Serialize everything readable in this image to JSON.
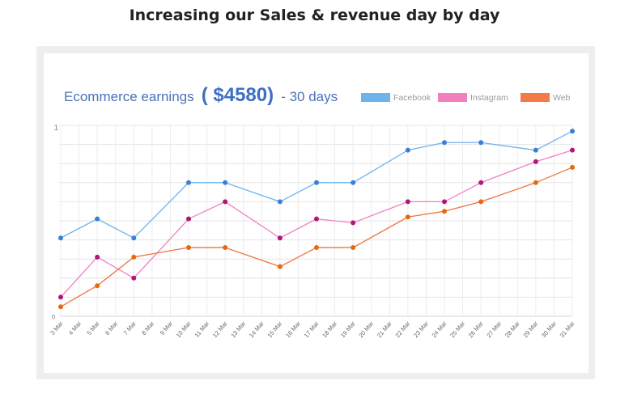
{
  "page": {
    "headline": "Increasing our Sales & revenue day by day"
  },
  "chart_data": {
    "type": "line",
    "title": {
      "prefix": "Ecommerce earnings",
      "amount": "( $4580)",
      "suffix": "- 30 days"
    },
    "ylim": [
      0,
      1
    ],
    "y_tick_labels": [
      "0",
      "1"
    ],
    "grid": true,
    "legend_position": "top-right",
    "categories": [
      "3 Mar",
      "4 Mar",
      "5 Mar",
      "6 Mar",
      "7 Mar",
      "8 Mar",
      "9 Mar",
      "10 Mar",
      "11 Mar",
      "12 Mar",
      "13 Mar",
      "14 Mar",
      "15 Mar",
      "16 Mar",
      "17 Mar",
      "18 Mar",
      "19 Mar",
      "20 Mar",
      "21 Mar",
      "22 Mar",
      "23 Mar",
      "24 Mar",
      "25 Mar",
      "26 Mar",
      "27 Mar",
      "28 Mar",
      "29 Mar",
      "30 Mar",
      "31 Mar"
    ],
    "series": [
      {
        "name": "Facebook",
        "color": "#6cb4ee",
        "marker_color": "#3a7fd5",
        "line_color": "#6cb4ee",
        "points": [
          [
            "3 Mar",
            0.41
          ],
          [
            "5 Mar",
            0.51
          ],
          [
            "7 Mar",
            0.41
          ],
          [
            "10 Mar",
            0.7
          ],
          [
            "12 Mar",
            0.7
          ],
          [
            "15 Mar",
            0.6
          ],
          [
            "17 Mar",
            0.7
          ],
          [
            "19 Mar",
            0.7
          ],
          [
            "22 Mar",
            0.87
          ],
          [
            "24 Mar",
            0.91
          ],
          [
            "26 Mar",
            0.91
          ],
          [
            "29 Mar",
            0.87
          ],
          [
            "31 Mar",
            0.97
          ]
        ]
      },
      {
        "name": "Instagram",
        "color": "#f47fbf",
        "marker_color": "#b0167a",
        "line_color": "#f17fc2",
        "points": [
          [
            "3 Mar",
            0.1
          ],
          [
            "5 Mar",
            0.31
          ],
          [
            "7 Mar",
            0.2
          ],
          [
            "10 Mar",
            0.51
          ],
          [
            "12 Mar",
            0.6
          ],
          [
            "15 Mar",
            0.41
          ],
          [
            "17 Mar",
            0.51
          ],
          [
            "19 Mar",
            0.49
          ],
          [
            "22 Mar",
            0.6
          ],
          [
            "24 Mar",
            0.6
          ],
          [
            "26 Mar",
            0.7
          ],
          [
            "29 Mar",
            0.81
          ],
          [
            "31 Mar",
            0.87
          ]
        ]
      },
      {
        "name": "Web",
        "color": "#f47a4a",
        "marker_color": "#e8680e",
        "line_color": "#ef7440",
        "points": [
          [
            "3 Mar",
            0.05
          ],
          [
            "5 Mar",
            0.16
          ],
          [
            "7 Mar",
            0.31
          ],
          [
            "10 Mar",
            0.36
          ],
          [
            "12 Mar",
            0.36
          ],
          [
            "15 Mar",
            0.26
          ],
          [
            "17 Mar",
            0.36
          ],
          [
            "19 Mar",
            0.36
          ],
          [
            "22 Mar",
            0.52
          ],
          [
            "24 Mar",
            0.55
          ],
          [
            "26 Mar",
            0.6
          ],
          [
            "29 Mar",
            0.7
          ],
          [
            "31 Mar",
            0.78
          ]
        ]
      }
    ]
  }
}
